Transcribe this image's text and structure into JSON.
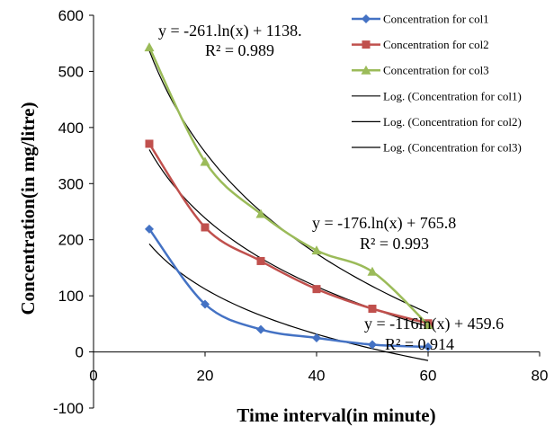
{
  "chart_data": {
    "type": "line",
    "xlabel": "Time interval(in minute)",
    "ylabel": "Concentration(in mg/litre)",
    "xlim": [
      0,
      80
    ],
    "ylim": [
      -100,
      600
    ],
    "xticks": [
      0,
      20,
      40,
      60,
      80
    ],
    "yticks": [
      -100,
      0,
      100,
      200,
      300,
      400,
      500,
      600
    ],
    "grid": false,
    "legend_position": "top-right",
    "x": [
      10,
      20,
      30,
      40,
      50,
      60
    ],
    "series": [
      {
        "name": "Concentration for col1",
        "values": [
          219,
          85,
          40,
          25,
          13,
          9
        ],
        "color": "#4472C4",
        "marker": "diamond"
      },
      {
        "name": "Concentration for col2",
        "values": [
          371,
          222,
          162,
          112,
          77,
          51
        ],
        "color": "#C0504D",
        "marker": "square"
      },
      {
        "name": "Concentration for col3",
        "values": [
          543,
          339,
          246,
          181,
          143,
          48
        ],
        "color": "#9BBB59",
        "marker": "triangle"
      }
    ],
    "trendlines": [
      {
        "name": "Log. (Concentration for col1)",
        "a": -116,
        "b": 459.6,
        "equation": "y = -116ln(x) + 459.6",
        "r2": "R² = 0.914",
        "color": "#000000"
      },
      {
        "name": "Log. (Concentration for col2)",
        "a": -176,
        "b": 765.8,
        "equation": "y = -176.ln(x) + 765.8",
        "r2": "R² = 0.993",
        "color": "#000000"
      },
      {
        "name": "Log. (Concentration for col3)",
        "a": -261,
        "b": 1138,
        "equation": "y = -261.ln(x) + 1138.",
        "r2": "R² = 0.989",
        "color": "#000000"
      }
    ]
  }
}
